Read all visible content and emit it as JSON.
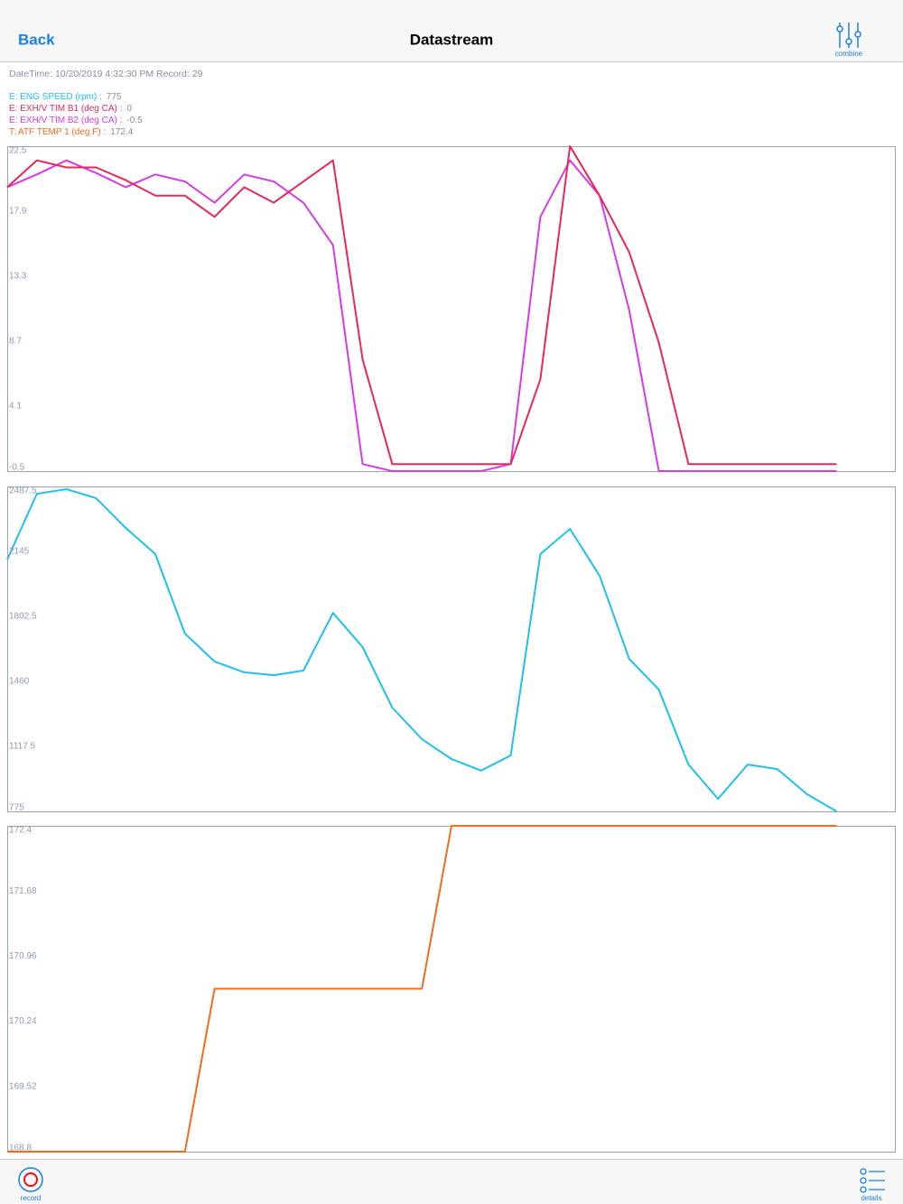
{
  "header": {
    "back": "Back",
    "title": "Datastream",
    "combine": "combine"
  },
  "info": {
    "datetime": "DateTime: 10/20/2019 4:32:30 PM Record: 29"
  },
  "readings": [
    {
      "label": "E: ENG SPEED (rpm) :",
      "value": 775,
      "color": "#1ec0f0"
    },
    {
      "label": "E: EXH/V TIM B1 (deg CA) :",
      "value": 0,
      "color": "#e8275a"
    },
    {
      "label": "E: EXH/V TIM B2 (deg CA) :",
      "value": -0.5,
      "color": "#d63be8"
    },
    {
      "label": "T: ATF TEMP 1 (deg F) :",
      "value": 172.4,
      "color": "#f26a1b"
    }
  ],
  "chart_data": [
    {
      "type": "line",
      "categories": [
        null,
        null,
        null,
        null,
        null,
        null,
        null,
        null,
        null,
        null,
        null,
        null,
        null,
        null,
        null,
        null,
        null,
        null,
        null,
        null,
        null,
        null,
        null,
        null,
        null,
        null,
        null,
        null,
        null
      ],
      "ylim": [
        -0.5,
        22.5
      ],
      "yticks": [
        22.5,
        17.9,
        13.3,
        8.7,
        4.1,
        -0.5
      ],
      "series": [
        {
          "color": "#d63be8",
          "values": [
            19.6,
            20.5,
            21.5,
            20.6,
            19.6,
            20.5,
            20.0,
            18.5,
            20.5,
            20.0,
            18.5,
            15.5,
            0,
            -0.5,
            -0.5,
            -0.5,
            -0.5,
            0,
            17.5,
            21.5,
            19.0,
            10.9,
            -0.5,
            -0.5,
            -0.5,
            -0.5,
            -0.5,
            -0.5,
            -0.5
          ]
        },
        {
          "color": "#e8275a",
          "values": [
            19.6,
            21.5,
            21.0,
            21.0,
            20.1,
            19.0,
            19.0,
            17.5,
            19.6,
            18.5,
            20.0,
            21.5,
            7.4,
            0,
            0,
            0,
            0,
            0,
            6.0,
            22.5,
            19.0,
            15.0,
            8.6,
            0,
            0,
            0,
            0,
            0,
            0
          ]
        }
      ]
    },
    {
      "type": "line",
      "categories": [
        null,
        null,
        null,
        null,
        null,
        null,
        null,
        null,
        null,
        null,
        null,
        null,
        null,
        null,
        null,
        null,
        null,
        null,
        null,
        null,
        null,
        null,
        null,
        null,
        null,
        null,
        null,
        null,
        null
      ],
      "ylim": [
        775,
        2487.5
      ],
      "yticks": [
        2487.5,
        2145,
        1802.5,
        1460,
        1117.5,
        775
      ],
      "series": [
        {
          "color": "#1ec0f0",
          "values": [
            2102,
            2449,
            2473,
            2426,
            2269,
            2131,
            1712,
            1565,
            1508,
            1493,
            1517,
            1821,
            1641,
            1322,
            1156,
            1051,
            990,
            1070,
            2131,
            2264,
            2017,
            1579,
            1417,
            1022,
            841,
            1022,
            998,
            866,
            775
          ]
        }
      ]
    },
    {
      "type": "line",
      "categories": [
        null,
        null,
        null,
        null,
        null,
        null,
        null,
        null,
        null,
        null,
        null,
        null,
        null,
        null,
        null,
        null,
        null,
        null,
        null,
        null,
        null,
        null,
        null,
        null,
        null,
        null,
        null,
        null,
        null
      ],
      "ylim": [
        168.8,
        172.4
      ],
      "yticks": [
        172.4,
        171.68,
        170.96,
        170.24,
        169.52,
        168.8
      ],
      "series": [
        {
          "color": "#f26a1b",
          "values": [
            168.8,
            168.8,
            168.8,
            168.8,
            168.8,
            168.8,
            168.8,
            170.6,
            170.6,
            170.6,
            170.6,
            170.6,
            170.6,
            170.6,
            170.6,
            172.4,
            172.4,
            172.4,
            172.4,
            172.4,
            172.4,
            172.4,
            172.4,
            172.4,
            172.4,
            172.4,
            172.4,
            172.4,
            172.4
          ]
        }
      ]
    }
  ],
  "footer": {
    "record": "record",
    "details": "details"
  }
}
